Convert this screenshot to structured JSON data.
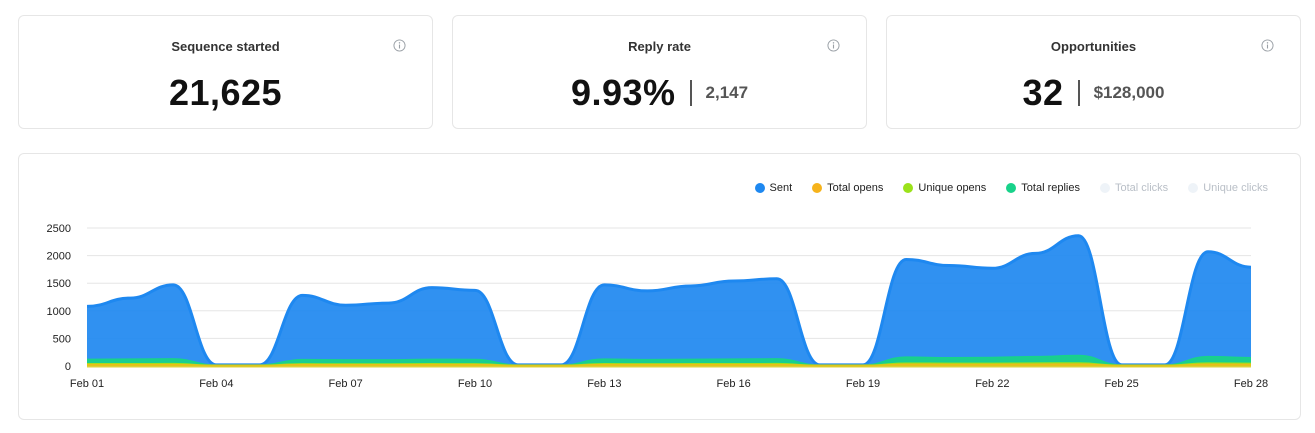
{
  "stats": [
    {
      "title": "Sequence started",
      "value": "21,625",
      "secondary": ""
    },
    {
      "title": "Reply rate",
      "value": "9.93%",
      "secondary": "2,147"
    },
    {
      "title": "Opportunities",
      "value": "32",
      "secondary": "$128,000"
    }
  ],
  "icons": {
    "info": "info-circle-icon"
  },
  "legend": [
    {
      "label": "Sent",
      "color": "#1e88f0",
      "active": true
    },
    {
      "label": "Total opens",
      "color": "#f6b31b",
      "active": true
    },
    {
      "label": "Unique opens",
      "color": "#9be21a",
      "active": true
    },
    {
      "label": "Total replies",
      "color": "#18d28a",
      "active": true
    },
    {
      "label": "Total clicks",
      "color": "#eef3f8",
      "active": false
    },
    {
      "label": "Unique clicks",
      "color": "#eef3f8",
      "active": false
    }
  ],
  "chart_data": {
    "type": "area",
    "x": [
      "Feb 01",
      "Feb 02",
      "Feb 03",
      "Feb 04",
      "Feb 05",
      "Feb 06",
      "Feb 07",
      "Feb 08",
      "Feb 09",
      "Feb 10",
      "Feb 11",
      "Feb 12",
      "Feb 13",
      "Feb 14",
      "Feb 15",
      "Feb 16",
      "Feb 17",
      "Feb 18",
      "Feb 19",
      "Feb 20",
      "Feb 21",
      "Feb 22",
      "Feb 23",
      "Feb 24",
      "Feb 25",
      "Feb 26",
      "Feb 27",
      "Feb 28"
    ],
    "x_tick_labels": [
      "Feb 01",
      "Feb 04",
      "Feb 07",
      "Feb 10",
      "Feb 13",
      "Feb 16",
      "Feb 19",
      "Feb 22",
      "Feb 25",
      "Feb 28"
    ],
    "ylim": [
      0,
      2500
    ],
    "y_ticks": [
      0,
      500,
      1000,
      1500,
      2000,
      2500
    ],
    "grid": true,
    "legend_position": "top-right",
    "series": [
      {
        "name": "Sent",
        "color": "#1e88f0",
        "values": [
          1080,
          1230,
          1470,
          20,
          20,
          1280,
          1100,
          1140,
          1420,
          1370,
          20,
          20,
          1470,
          1360,
          1450,
          1540,
          1580,
          20,
          20,
          1930,
          1820,
          1770,
          2040,
          2360,
          20,
          20,
          2070,
          1790
        ]
      },
      {
        "name": "Total replies",
        "color": "#18d28a",
        "values": [
          120,
          125,
          130,
          15,
          15,
          115,
          110,
          112,
          120,
          118,
          15,
          15,
          125,
          115,
          120,
          125,
          128,
          15,
          15,
          160,
          150,
          155,
          170,
          190,
          15,
          15,
          170,
          150
        ]
      },
      {
        "name": "Unique opens",
        "color": "#9be21a",
        "values": [
          40,
          40,
          42,
          10,
          10,
          38,
          36,
          36,
          40,
          38,
          10,
          10,
          40,
          38,
          40,
          40,
          42,
          10,
          10,
          50,
          48,
          48,
          52,
          55,
          10,
          10,
          52,
          48
        ]
      },
      {
        "name": "Total opens",
        "color": "#f6b31b",
        "values": [
          25,
          25,
          26,
          8,
          8,
          24,
          22,
          22,
          25,
          24,
          8,
          8,
          25,
          24,
          25,
          25,
          26,
          8,
          8,
          30,
          28,
          28,
          30,
          32,
          8,
          8,
          30,
          28
        ]
      }
    ]
  }
}
